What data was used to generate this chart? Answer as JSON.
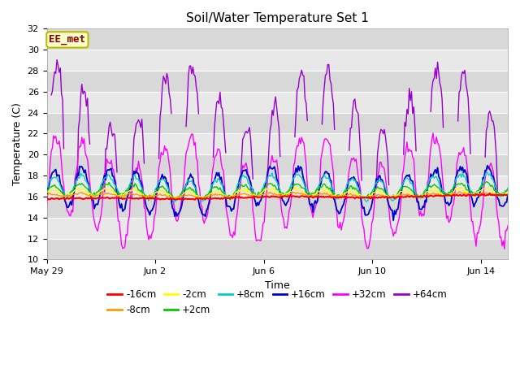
{
  "title": "Soil/Water Temperature Set 1",
  "xlabel": "Time",
  "ylabel": "Temperature (C)",
  "ylim": [
    10,
    32
  ],
  "yticks": [
    10,
    12,
    14,
    16,
    18,
    20,
    22,
    24,
    26,
    28,
    30,
    32
  ],
  "annotation_text": "EE_met",
  "annotation_box_facecolor": "#ffffcc",
  "annotation_box_edgecolor": "#bbbb00",
  "annotation_text_color": "#880000",
  "x_tick_labels": [
    "May 29",
    "Jun 2",
    "Jun 6",
    "Jun 10",
    "Jun 14"
  ],
  "x_tick_positions": [
    0,
    4,
    8,
    12,
    16
  ],
  "background_color": "#ffffff",
  "plot_bg_color": "#e8e8e8",
  "grid_color": "#ffffff",
  "series": [
    {
      "label": "-16cm",
      "color": "#ff0000"
    },
    {
      "label": "-8cm",
      "color": "#ff9900"
    },
    {
      "label": "-2cm",
      "color": "#ffff00"
    },
    {
      "label": "+2cm",
      "color": "#00cc00"
    },
    {
      "label": "+8cm",
      "color": "#00cccc"
    },
    {
      "label": "+16cm",
      "color": "#0000cc"
    },
    {
      "label": "+32cm",
      "color": "#ff00ff"
    },
    {
      "label": "+64cm",
      "color": "#9900cc"
    }
  ]
}
